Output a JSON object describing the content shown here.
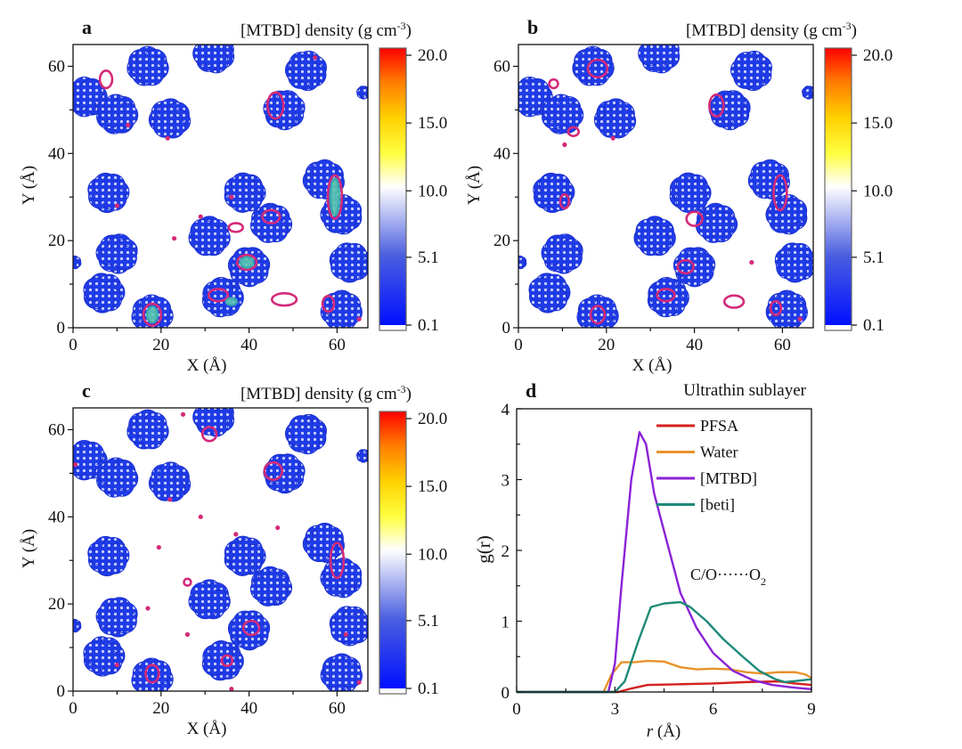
{
  "colors": {
    "blob": "#1f3be6",
    "contour": "#d42a78",
    "teal_contour": "#3fb5a8",
    "pfsa": "#d42020",
    "water": "#e8922a",
    "mtbd": "#8a22d6",
    "beti": "#1e8a78"
  },
  "chart_data": [
    {
      "type": "heatmap",
      "letter": "a",
      "title": {
        "main": "[MTBD] density (g cm",
        "sup": "-3",
        "close": ")"
      },
      "xlabel": "X (Å)",
      "ylabel": "Y (Å)",
      "xlim": [
        0,
        67
      ],
      "ylim": [
        0,
        65
      ],
      "xticks": [
        "0",
        "20",
        "40",
        "60"
      ],
      "yticks": [
        "0",
        "20",
        "40",
        "60"
      ],
      "colorbar": {
        "ticks": [
          "0.1",
          "5.1",
          "10.0",
          "15.0",
          "20.0"
        ],
        "range": [
          0.1,
          20.0
        ]
      },
      "clusters": [
        [
          3,
          53
        ],
        [
          10,
          49
        ],
        [
          17,
          60
        ],
        [
          22,
          48
        ],
        [
          32,
          63
        ],
        [
          53,
          59
        ],
        [
          48,
          50
        ],
        [
          66,
          54,
          1.5
        ],
        [
          8,
          31
        ],
        [
          39,
          31
        ],
        [
          45,
          24
        ],
        [
          31,
          21
        ],
        [
          57,
          34
        ],
        [
          61,
          26
        ],
        [
          10,
          17
        ],
        [
          40,
          14
        ],
        [
          63,
          15
        ],
        [
          7,
          8
        ],
        [
          34,
          7
        ],
        [
          18,
          3
        ],
        [
          61,
          4
        ],
        [
          0.3,
          15,
          1.5
        ]
      ],
      "contours": [
        [
          7.5,
          57,
          1.4,
          2
        ],
        [
          46,
          51,
          1.8,
          3
        ],
        [
          45,
          25.5,
          2,
          1.5
        ],
        [
          37,
          23,
          1.6,
          1
        ],
        [
          48,
          6.5,
          2.8,
          1.4
        ],
        [
          33,
          7.5,
          2.2,
          1.4
        ],
        [
          58,
          5.5,
          1.3,
          1.8
        ],
        [
          39.5,
          15,
          2.2,
          1.7
        ],
        [
          59.5,
          30,
          1.6,
          5
        ],
        [
          18,
          3,
          2,
          2.5
        ]
      ],
      "teal_contours": [
        [
          59.5,
          30,
          1,
          4.3
        ],
        [
          39.5,
          15,
          1.5,
          1.2
        ],
        [
          18,
          3,
          1.2,
          1.8
        ],
        [
          36,
          6,
          1.2,
          0.8
        ]
      ],
      "spots": [
        [
          21.5,
          43.5
        ],
        [
          12.5,
          46.5
        ],
        [
          10,
          28
        ],
        [
          36,
          30
        ],
        [
          29,
          25.5
        ],
        [
          23,
          20.5
        ],
        [
          55,
          62
        ],
        [
          65,
          2
        ]
      ]
    },
    {
      "type": "heatmap",
      "letter": "b",
      "title": {
        "main": "[MTBD] density (g cm",
        "sup": "-3",
        "close": ")"
      },
      "xlabel": "X (Å)",
      "ylabel": "Y (Å)",
      "xlim": [
        0,
        67
      ],
      "ylim": [
        0,
        65
      ],
      "xticks": [
        "0",
        "20",
        "40",
        "60"
      ],
      "yticks": [
        "0",
        "20",
        "40",
        "60"
      ],
      "colorbar": {
        "ticks": [
          "0.1",
          "5.1",
          "10.0",
          "15.0",
          "20.0"
        ],
        "range": [
          0.1,
          20.0
        ]
      },
      "clusters": [
        [
          3,
          53
        ],
        [
          10,
          49
        ],
        [
          17,
          60
        ],
        [
          22,
          48
        ],
        [
          32,
          63
        ],
        [
          53,
          59
        ],
        [
          48,
          50
        ],
        [
          66,
          54,
          1.5
        ],
        [
          8,
          31
        ],
        [
          39,
          31
        ],
        [
          45,
          24
        ],
        [
          31,
          21
        ],
        [
          57,
          34
        ],
        [
          61,
          26
        ],
        [
          10,
          17
        ],
        [
          40,
          14
        ],
        [
          63,
          15
        ],
        [
          7,
          8
        ],
        [
          34,
          7
        ],
        [
          18,
          3
        ],
        [
          61,
          4
        ],
        [
          0.3,
          15,
          1.5
        ]
      ],
      "contours": [
        [
          18,
          59.5,
          2.2,
          2
        ],
        [
          8,
          56,
          1,
          1
        ],
        [
          45,
          51,
          1.6,
          2.5
        ],
        [
          40,
          25,
          1.8,
          1.6
        ],
        [
          59.5,
          31,
          1.5,
          4
        ],
        [
          38,
          14,
          1.8,
          1.5
        ],
        [
          33.5,
          7.5,
          2,
          1.4
        ],
        [
          49,
          6,
          2.2,
          1.4
        ],
        [
          58.5,
          4.5,
          1.2,
          1.6
        ],
        [
          18,
          3,
          1.6,
          2
        ],
        [
          10.5,
          29,
          1,
          1.6
        ],
        [
          12.5,
          45,
          1.2,
          1
        ]
      ],
      "teal_contours": [],
      "spots": [
        [
          10.5,
          42
        ],
        [
          21.5,
          43.5
        ],
        [
          53,
          15
        ],
        [
          64,
          2
        ]
      ]
    },
    {
      "type": "heatmap",
      "letter": "c",
      "title": {
        "main": "[MTBD] density (g cm",
        "sup": "-3",
        "close": ")"
      },
      "xlabel": "X (Å)",
      "ylabel": "Y (Å)",
      "xlim": [
        0,
        67
      ],
      "ylim": [
        0,
        65
      ],
      "xticks": [
        "0",
        "20",
        "40",
        "60"
      ],
      "yticks": [
        "0",
        "20",
        "40",
        "60"
      ],
      "colorbar": {
        "ticks": [
          "0.1",
          "5.1",
          "10.0",
          "15.0",
          "20.0"
        ],
        "range": [
          0.1,
          20.0
        ]
      },
      "clusters": [
        [
          3,
          53
        ],
        [
          10,
          49
        ],
        [
          17,
          60
        ],
        [
          22,
          48
        ],
        [
          32,
          63
        ],
        [
          53,
          59
        ],
        [
          48,
          50
        ],
        [
          66,
          54,
          1.5
        ],
        [
          8,
          31
        ],
        [
          39,
          31
        ],
        [
          45,
          24
        ],
        [
          31,
          21
        ],
        [
          57,
          34
        ],
        [
          61,
          26
        ],
        [
          10,
          17
        ],
        [
          40,
          14
        ],
        [
          63,
          15
        ],
        [
          7,
          8
        ],
        [
          34,
          7
        ],
        [
          18,
          3
        ],
        [
          61,
          4
        ],
        [
          0.3,
          15,
          1.5
        ]
      ],
      "contours": [
        [
          31,
          59,
          1.6,
          1.6
        ],
        [
          45.5,
          50.5,
          2,
          2
        ],
        [
          60,
          30,
          1.5,
          4
        ],
        [
          40.5,
          14.5,
          1.8,
          1.6
        ],
        [
          35,
          7,
          1.2,
          1.2
        ],
        [
          18,
          4,
          1.5,
          2
        ],
        [
          26,
          25,
          0.8,
          0.8
        ]
      ],
      "teal_contours": [],
      "spots": [
        [
          22,
          44
        ],
        [
          19.5,
          33
        ],
        [
          29,
          40
        ],
        [
          37,
          36
        ],
        [
          46.5,
          37.5
        ],
        [
          17,
          19
        ],
        [
          26,
          13
        ],
        [
          36,
          0.5
        ],
        [
          62,
          13
        ],
        [
          65,
          2
        ],
        [
          10,
          6
        ],
        [
          0.5,
          52
        ],
        [
          25,
          63.5
        ]
      ]
    },
    {
      "type": "line",
      "letter": "d",
      "title": "Ultrathin sublayer",
      "xlabel": "r (Å)",
      "ylabel": "g(r)",
      "xlabel_parts": {
        "var": "r",
        "unit": " (Å)"
      },
      "ylabel_parts": {
        "pre": "g(",
        "var": "r",
        "post": ")"
      },
      "annotation": {
        "main": "C/O······O",
        "sub": "2"
      },
      "xlim": [
        0,
        9
      ],
      "ylim": [
        0,
        4
      ],
      "xticks": [
        "0",
        "3",
        "6",
        "9"
      ],
      "yticks": [
        "0",
        "1",
        "2",
        "3",
        "4"
      ],
      "legend_position": "top-right",
      "series": [
        {
          "name": "PFSA",
          "x": [
            0,
            3.1,
            3.5,
            4,
            5,
            6,
            7,
            8,
            8.5,
            9
          ],
          "y": [
            0,
            0,
            0.05,
            0.1,
            0.11,
            0.12,
            0.14,
            0.15,
            0.12,
            0.1
          ]
        },
        {
          "name": "Water",
          "x": [
            0,
            2.65,
            2.9,
            3.2,
            3.6,
            4,
            4.5,
            5,
            5.5,
            6,
            6.5,
            7,
            7.5,
            8,
            8.5,
            8.8,
            9
          ],
          "y": [
            0,
            0,
            0.25,
            0.42,
            0.42,
            0.44,
            0.43,
            0.35,
            0.32,
            0.33,
            0.32,
            0.28,
            0.26,
            0.28,
            0.28,
            0.25,
            0.2
          ]
        },
        {
          "name": "[MTBD]",
          "x": [
            0,
            2.8,
            3.0,
            3.2,
            3.5,
            3.75,
            3.95,
            4.2,
            4.6,
            5.0,
            5.5,
            6.0,
            6.6,
            7.2,
            7.8,
            8.5,
            9
          ],
          "y": [
            0,
            0,
            0.4,
            1.5,
            3.0,
            3.67,
            3.5,
            2.8,
            2.1,
            1.4,
            0.9,
            0.55,
            0.3,
            0.17,
            0.1,
            0.06,
            0.04
          ]
        },
        {
          "name": "[beti]",
          "x": [
            0,
            3.0,
            3.3,
            3.7,
            4.1,
            4.5,
            5.0,
            5.3,
            5.8,
            6.3,
            6.9,
            7.4,
            7.9,
            8.2,
            8.6,
            9
          ],
          "y": [
            0,
            0,
            0.15,
            0.7,
            1.2,
            1.25,
            1.27,
            1.2,
            1.0,
            0.75,
            0.5,
            0.3,
            0.18,
            0.14,
            0.16,
            0.18
          ]
        }
      ]
    }
  ]
}
